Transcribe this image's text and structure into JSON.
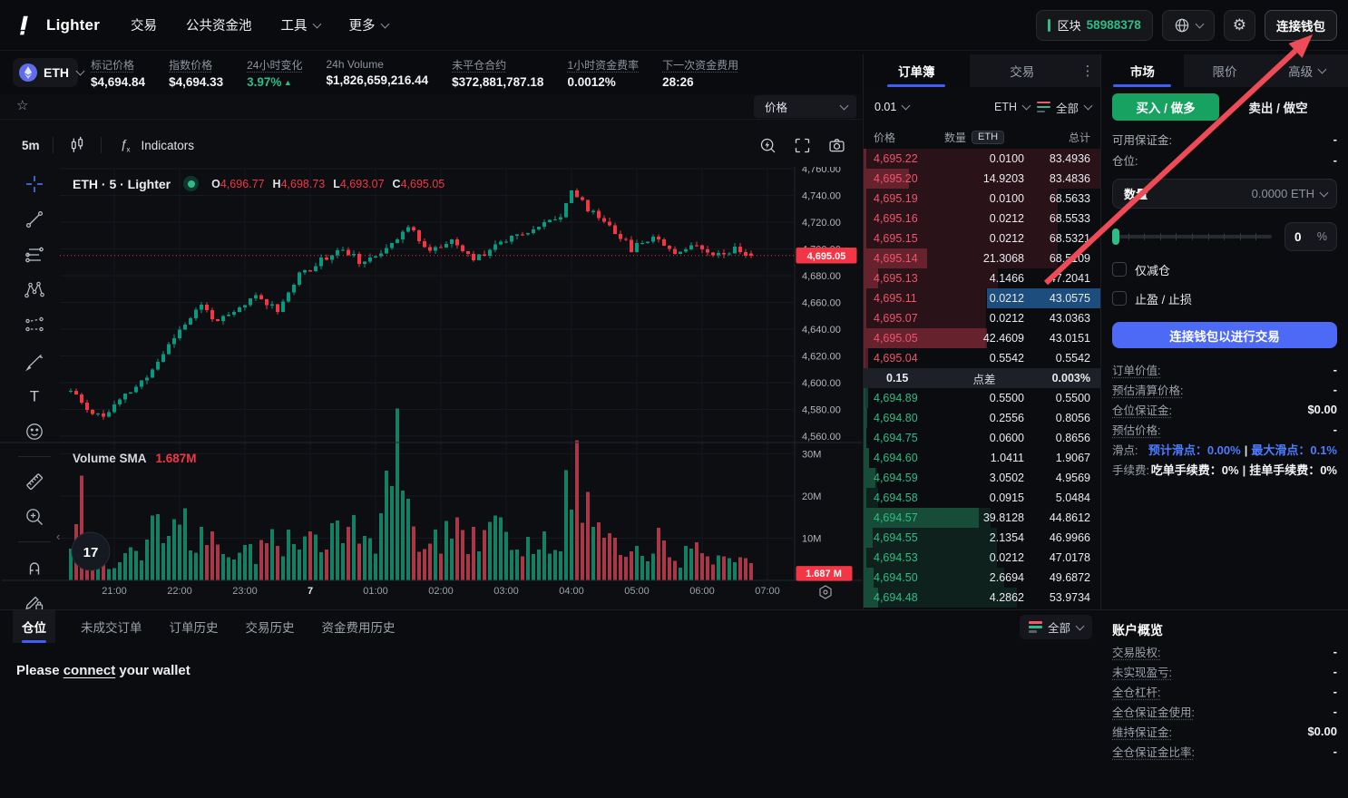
{
  "navbar": {
    "brand": "Lighter",
    "items": [
      {
        "label": "交易",
        "chevron": false
      },
      {
        "label": "公共资金池",
        "chevron": false
      },
      {
        "label": "工具",
        "chevron": true
      },
      {
        "label": "更多",
        "chevron": true
      }
    ],
    "block_label": "区块",
    "block_number": "58988378",
    "connect_wallet": "连接钱包"
  },
  "stats": {
    "symbol": "ETH",
    "items": [
      {
        "label": "标记价格",
        "value": "$4,694.84",
        "dotted": true
      },
      {
        "label": "指数价格",
        "value": "$4,694.33",
        "dotted": true
      },
      {
        "label": "24小时变化",
        "value": "3.97%",
        "arrow": "▲",
        "positive": true,
        "dotted": true
      },
      {
        "label": "24h Volume",
        "value": "$1,826,659,216.44",
        "dotted": false
      },
      {
        "label": "未平仓合约",
        "value": "$372,881,787.18",
        "dotted": true
      },
      {
        "label": "1小时资金费率",
        "value": "0.0012%",
        "dotted": true
      },
      {
        "label": "下一次资金费用",
        "value": "28:26",
        "dotted": true
      }
    ]
  },
  "chart": {
    "favorites_dropdown": "价格",
    "timeframe": "5m",
    "indicators_label": "Indicators",
    "legend_title": "ETH · 5 · Lighter",
    "ohlc": [
      [
        "O",
        "4,696.77"
      ],
      [
        "H",
        "4,698.73"
      ],
      [
        "L",
        "4,693.07"
      ],
      [
        "C",
        "4,695.05"
      ]
    ],
    "last_price_tag": "4,695.05",
    "volume_name": "Volume SMA",
    "volume_value": "1.687M",
    "volume_tag": "1.687 M",
    "tv_logo_text": "17",
    "y_ticks": [
      "4,760.00",
      "4,740.00",
      "4,720.00",
      "4,700.00",
      "4,680.00",
      "4,660.00",
      "4,640.00",
      "4,620.00",
      "4,600.00",
      "4,580.00",
      "4,560.00"
    ],
    "vol_ticks": [
      "30M",
      "20M",
      "10M"
    ],
    "x_ticks": [
      "21:00",
      "22:00",
      "23:00",
      "7",
      "01:00",
      "02:00",
      "03:00",
      "04:00",
      "05:00",
      "06:00",
      "07:00"
    ],
    "draw_tools": [
      "crosshair-tool-icon",
      "trend-line-tool-icon",
      "horizontal-lines-tool-icon",
      "xabcd-pattern-tool-icon",
      "forecast-tool-icon",
      "brush-tool-icon",
      "text-tool-icon",
      "emoji-tool-icon",
      "divider",
      "ruler-tool-icon",
      "zoom-in-tool-icon",
      "divider",
      "magnet-tool-icon",
      "drawing-lock-tool-icon",
      "arc-tool-icon"
    ]
  },
  "chart_data": {
    "type": "candlestick",
    "title": "ETH · 5 · Lighter",
    "interval": "5m",
    "price_range": [
      4560,
      4760
    ],
    "volume_range_millions": [
      0,
      32
    ],
    "x_tick_labels": [
      "21:00",
      "22:00",
      "23:00",
      "7",
      "01:00",
      "02:00",
      "03:00",
      "04:00",
      "05:00",
      "06:00",
      "07:00"
    ],
    "last_price": 4695.05,
    "last_candle": [
      4696.77,
      4698.73,
      4693.07,
      4695.05
    ],
    "volume_sma_millions": 1.687,
    "count": 126,
    "seed": 11,
    "anchors": [
      [
        0,
        4594
      ],
      [
        3,
        4580
      ],
      [
        6,
        4575
      ],
      [
        10,
        4590
      ],
      [
        14,
        4604
      ],
      [
        20,
        4640
      ],
      [
        24,
        4658
      ],
      [
        27,
        4645
      ],
      [
        30,
        4652
      ],
      [
        34,
        4665
      ],
      [
        38,
        4655
      ],
      [
        42,
        4680
      ],
      [
        46,
        4692
      ],
      [
        50,
        4700
      ],
      [
        54,
        4688
      ],
      [
        58,
        4702
      ],
      [
        62,
        4716
      ],
      [
        66,
        4699
      ],
      [
        70,
        4705
      ],
      [
        74,
        4692
      ],
      [
        78,
        4703
      ],
      [
        82,
        4712
      ],
      [
        86,
        4716
      ],
      [
        90,
        4726
      ],
      [
        92,
        4744
      ],
      [
        95,
        4730
      ],
      [
        99,
        4718
      ],
      [
        103,
        4700
      ],
      [
        107,
        4710
      ],
      [
        111,
        4698
      ],
      [
        115,
        4703
      ],
      [
        119,
        4696
      ],
      [
        122,
        4700
      ],
      [
        125,
        4695
      ]
    ],
    "vol_anchors": [
      [
        0,
        7
      ],
      [
        2,
        19
      ],
      [
        5,
        5
      ],
      [
        9,
        4
      ],
      [
        13,
        8
      ],
      [
        16,
        15
      ],
      [
        18,
        12
      ],
      [
        20,
        14
      ],
      [
        24,
        9
      ],
      [
        28,
        7
      ],
      [
        32,
        6
      ],
      [
        36,
        8
      ],
      [
        40,
        10
      ],
      [
        44,
        9
      ],
      [
        48,
        12
      ],
      [
        51,
        12
      ],
      [
        56,
        10
      ],
      [
        60,
        30
      ],
      [
        63,
        14
      ],
      [
        66,
        8
      ],
      [
        70,
        11
      ],
      [
        74,
        9
      ],
      [
        78,
        12
      ],
      [
        82,
        8
      ],
      [
        86,
        7
      ],
      [
        90,
        12
      ],
      [
        92,
        29
      ],
      [
        96,
        13
      ],
      [
        100,
        9
      ],
      [
        104,
        6
      ],
      [
        108,
        9
      ],
      [
        112,
        5
      ],
      [
        116,
        8
      ],
      [
        120,
        5
      ],
      [
        125,
        6
      ]
    ]
  },
  "orderbook": {
    "tabs": [
      "订单簿",
      "交易"
    ],
    "tick_size": "0.01",
    "unit": "ETH",
    "depth_filter": "全部",
    "columns": {
      "price": "价格",
      "amount": "数量",
      "amount_unit": "ETH",
      "total": "总计"
    },
    "asks": [
      [
        "4,695.22",
        "0.0100",
        "83.4936"
      ],
      [
        "4,695.20",
        "14.9203",
        "83.4836"
      ],
      [
        "4,695.19",
        "0.0100",
        "68.5633"
      ],
      [
        "4,695.16",
        "0.0212",
        "68.5533"
      ],
      [
        "4,695.15",
        "0.0212",
        "68.5321"
      ],
      [
        "4,695.14",
        "21.3068",
        "68.5109"
      ],
      [
        "4,695.13",
        "4.1466",
        "47.2041"
      ],
      [
        "4,695.11",
        "0.0212",
        "43.0575"
      ],
      [
        "4,695.07",
        "0.0212",
        "43.0363"
      ],
      [
        "4,695.05",
        "42.4609",
        "43.0151"
      ],
      [
        "4,695.04",
        "0.5542",
        "0.5542"
      ]
    ],
    "ask_flash_row": 7,
    "spread": {
      "value": "0.15",
      "label": "点差",
      "pct": "0.003%"
    },
    "bids": [
      [
        "4,694.89",
        "0.5500",
        "0.5500"
      ],
      [
        "4,694.80",
        "0.2556",
        "0.8056"
      ],
      [
        "4,694.75",
        "0.0600",
        "0.8656"
      ],
      [
        "4,694.60",
        "1.0411",
        "1.9067"
      ],
      [
        "4,694.59",
        "3.0502",
        "4.9569"
      ],
      [
        "4,694.58",
        "0.0915",
        "5.0484"
      ],
      [
        "4,694.57",
        "39.8128",
        "44.8612"
      ],
      [
        "4,694.55",
        "2.1354",
        "46.9966"
      ],
      [
        "4,694.53",
        "0.0212",
        "47.0178"
      ],
      [
        "4,694.50",
        "2.6694",
        "49.6872"
      ],
      [
        "4,694.48",
        "4.2862",
        "53.9734"
      ]
    ],
    "max_total": 83.4936
  },
  "trade_panel": {
    "tabs": [
      "市场",
      "限价",
      "高级"
    ],
    "buy_label": "买入 / 做多",
    "sell_label": "卖出 / 做空",
    "rows1": [
      {
        "label": "可用保证金:",
        "value": "-"
      },
      {
        "label": "仓位:",
        "value": "-"
      }
    ],
    "amount_label": "数量",
    "amount_value": "0.0000 ETH",
    "slider_value": "0",
    "slider_unit": "%",
    "checkboxes": [
      "仅减仓",
      "止盈 / 止损"
    ],
    "connect_button": "连接钱包以进行交易",
    "rows2": [
      {
        "label": "订单价值:",
        "value": "-",
        "dotted": true
      },
      {
        "label": "预估清算价格:",
        "value": "-",
        "dotted": true
      },
      {
        "label": "仓位保证金:",
        "value": "$0.00",
        "dotted": true
      },
      {
        "label": "预估价格:",
        "value": "-",
        "dotted": true
      }
    ],
    "slippage": {
      "label": "滑点:",
      "part1": "预计滑点：0.00%",
      "sep": "|",
      "part2": "最大滑点：0.1%"
    },
    "fees": {
      "label": "手续费:",
      "part1": "吃单手续费：0%",
      "sep": "|",
      "part2": "挂单手续费：0%"
    }
  },
  "account": {
    "title": "账户概览",
    "rows": [
      {
        "label": "交易股权:",
        "value": "-",
        "dotted": true
      },
      {
        "label": "未实现盈亏:",
        "value": "-",
        "dotted": true
      },
      {
        "label": "全仓杠杆:",
        "value": "-",
        "dotted": true
      },
      {
        "label": "全仓保证金使用:",
        "value": "-",
        "dotted": true
      },
      {
        "label": "维持保证金:",
        "value": "$0.00",
        "dotted": true
      },
      {
        "label": "全仓保证金比率:",
        "value": "-",
        "dotted": true
      }
    ]
  },
  "bottom": {
    "tabs": [
      "仓位",
      "未成交订单",
      "订单历史",
      "交易历史",
      "资金费用历史"
    ],
    "filter": "全部",
    "message_pre": "Please ",
    "message_link": "connect",
    "message_post": " your wallet"
  },
  "colors": {
    "up": "#089981",
    "down": "#f23645",
    "ask_text": "#f1546b",
    "bid_text": "#2ebd85",
    "accent_blue": "#3f5ef8",
    "button_blue": "#4c6af5",
    "buy_green": "#17a261",
    "block_green": "#2ebd85",
    "annotation_red": "#ee4b57",
    "flash_blue": "#1c4d7d"
  }
}
